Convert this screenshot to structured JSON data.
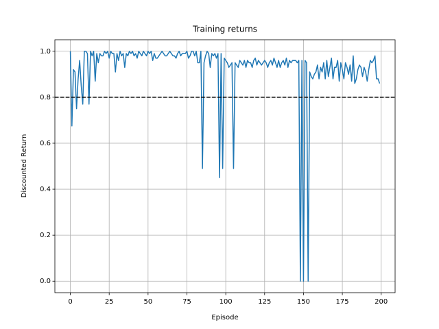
{
  "chart_data": {
    "type": "line",
    "title": "Training returns",
    "x_label": "Episode",
    "y_label": "Discounted Return",
    "x": [
      0,
      1,
      2,
      3,
      4,
      5,
      6,
      7,
      8,
      9,
      10,
      11,
      12,
      13,
      14,
      15,
      16,
      17,
      18,
      19,
      20,
      21,
      22,
      23,
      24,
      25,
      26,
      27,
      28,
      29,
      30,
      31,
      32,
      33,
      34,
      35,
      36,
      37,
      38,
      39,
      40,
      41,
      42,
      43,
      44,
      45,
      46,
      47,
      48,
      49,
      50,
      51,
      52,
      53,
      54,
      55,
      56,
      57,
      58,
      59,
      60,
      61,
      62,
      63,
      64,
      65,
      66,
      67,
      68,
      69,
      70,
      71,
      72,
      73,
      74,
      75,
      76,
      77,
      78,
      79,
      80,
      81,
      82,
      83,
      84,
      85,
      86,
      87,
      88,
      89,
      90,
      91,
      92,
      93,
      94,
      95,
      96,
      97,
      98,
      99,
      100,
      101,
      102,
      103,
      104,
      105,
      106,
      107,
      108,
      109,
      110,
      111,
      112,
      113,
      114,
      115,
      116,
      117,
      118,
      119,
      120,
      121,
      122,
      123,
      124,
      125,
      126,
      127,
      128,
      129,
      130,
      131,
      132,
      133,
      134,
      135,
      136,
      137,
      138,
      139,
      140,
      141,
      142,
      143,
      144,
      145,
      146,
      147,
      148,
      149,
      150,
      151,
      152,
      153,
      154,
      155,
      156,
      157,
      158,
      159,
      160,
      161,
      162,
      163,
      164,
      165,
      166,
      167,
      168,
      169,
      170,
      171,
      172,
      173,
      174,
      175,
      176,
      177,
      178,
      179,
      180,
      181,
      182,
      183,
      184,
      185,
      186,
      187,
      188,
      189,
      190,
      191,
      192,
      193,
      194,
      195,
      196,
      197,
      198,
      199
    ],
    "series": [
      {
        "color": "#1f77b4",
        "values": [
          1.0,
          0.675,
          0.92,
          0.91,
          0.75,
          0.88,
          0.96,
          0.85,
          0.77,
          1.0,
          1.0,
          0.99,
          0.77,
          1.0,
          0.98,
          1.0,
          0.87,
          0.99,
          0.95,
          0.99,
          0.98,
          0.98,
          1.0,
          0.99,
          1.0,
          0.97,
          1.0,
          0.99,
          0.99,
          0.91,
          0.99,
          0.96,
          1.0,
          0.98,
          0.99,
          0.93,
          0.99,
          0.98,
          1.0,
          0.99,
          1.0,
          0.98,
          0.99,
          0.97,
          1.0,
          0.99,
          0.98,
          1.0,
          0.99,
          0.98,
          1.0,
          0.99,
          1.0,
          0.96,
          0.99,
          0.97,
          0.97,
          0.98,
          0.99,
          1.0,
          0.99,
          0.98,
          0.98,
          0.99,
          1.0,
          0.99,
          0.98,
          0.98,
          0.97,
          0.99,
          1.0,
          0.98,
          0.99,
          0.99,
          0.99,
          1.0,
          0.97,
          0.98,
          1.0,
          1.0,
          0.98,
          1.0,
          0.95,
          0.95,
          1.0,
          0.49,
          0.95,
          0.98,
          1.0,
          0.99,
          0.93,
          0.99,
          0.98,
          0.99,
          0.97,
          0.99,
          0.45,
          0.99,
          0.49,
          0.97,
          0.96,
          0.95,
          0.93,
          0.94,
          0.95,
          0.49,
          0.95,
          0.94,
          0.93,
          0.96,
          0.95,
          0.94,
          0.96,
          0.93,
          0.96,
          0.95,
          0.95,
          0.93,
          0.96,
          0.97,
          0.94,
          0.96,
          0.95,
          0.94,
          0.95,
          0.96,
          0.95,
          0.93,
          0.95,
          0.96,
          0.94,
          0.97,
          0.95,
          0.93,
          0.96,
          0.93,
          0.95,
          0.96,
          0.94,
          0.97,
          0.93,
          0.96,
          0.95,
          0.96,
          0.96,
          0.96,
          0.95,
          0.96,
          0.0,
          0.96,
          0.0,
          0.96,
          0.95,
          0.0,
          0.91,
          0.89,
          0.88,
          0.9,
          0.91,
          0.94,
          0.88,
          0.93,
          0.91,
          0.95,
          0.88,
          0.96,
          0.89,
          0.93,
          0.97,
          0.88,
          0.93,
          0.93,
          0.96,
          0.87,
          0.95,
          0.92,
          0.88,
          0.95,
          0.93,
          0.9,
          0.94,
          0.87,
          0.98,
          0.86,
          0.88,
          0.92,
          0.94,
          0.93,
          0.89,
          0.93,
          0.91,
          0.87,
          0.92,
          0.96,
          0.95,
          0.96,
          0.98,
          0.88,
          0.88,
          0.86
        ]
      }
    ],
    "hline": 0.8,
    "hline_color": "#000000",
    "xlim": [
      -9.95,
      208.95
    ],
    "ylim": [
      -0.05,
      1.05
    ],
    "xticks": [
      0,
      25,
      50,
      75,
      100,
      125,
      150,
      175,
      200
    ],
    "yticks": [
      {
        "value": 0,
        "label": "0.0"
      },
      {
        "value": 0.2,
        "label": "0.2"
      },
      {
        "value": 0.4,
        "label": "0.4"
      },
      {
        "value": 0.6,
        "label": "0.6"
      },
      {
        "value": 0.8,
        "label": "0.8"
      },
      {
        "value": 1,
        "label": "1.0"
      }
    ],
    "grid": true
  }
}
